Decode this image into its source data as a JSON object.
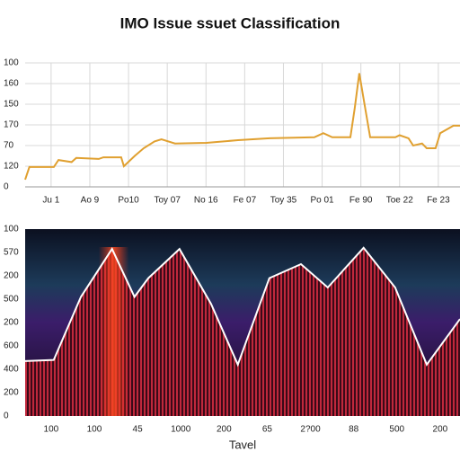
{
  "chart_data": [
    {
      "type": "line",
      "title": "IMO Issue ssuet Classification",
      "color": "#e0a030",
      "grid": true,
      "x": [
        -0.67,
        -0.56,
        0.07,
        0.19,
        0.53,
        0.65,
        1.23,
        1.35,
        1.81,
        1.88,
        2.16,
        2.39,
        2.67,
        2.85,
        3.2,
        4.01,
        4.83,
        5.64,
        6.8,
        7.03,
        7.26,
        7.73,
        7.84,
        7.96,
        8.07,
        8.24,
        8.89,
        9.0,
        9.23,
        9.35,
        9.58,
        9.7,
        9.93,
        10.05,
        10.39,
        10.56
      ],
      "values": [
        0.35,
        0.96,
        0.96,
        1.3,
        1.2,
        1.4,
        1.35,
        1.43,
        1.43,
        1.0,
        1.5,
        1.87,
        2.2,
        2.3,
        2.1,
        2.13,
        2.26,
        2.35,
        2.4,
        2.6,
        2.4,
        2.4,
        3.8,
        5.5,
        4.26,
        2.4,
        2.4,
        2.5,
        2.35,
        2.0,
        2.1,
        1.87,
        1.87,
        2.6,
        2.96,
        2.96
      ],
      "xlim": [
        -0.67,
        10.56
      ],
      "xticks": [
        {
          "value": 0,
          "label": "Ju 1"
        },
        {
          "value": 1,
          "label": "Ao 9"
        },
        {
          "value": 2,
          "label": "Po10"
        },
        {
          "value": 3,
          "label": "Toy 07"
        },
        {
          "value": 4,
          "label": "No 16"
        },
        {
          "value": 5,
          "label": "Fe 07"
        },
        {
          "value": 6,
          "label": "Toy 35"
        },
        {
          "value": 7,
          "label": "Po 01"
        },
        {
          "value": 8,
          "label": "Fe 90"
        },
        {
          "value": 9,
          "label": "Toe 22"
        },
        {
          "value": 10,
          "label": "Fe 23"
        }
      ],
      "ylim": [
        0,
        6
      ],
      "yticks": [
        0,
        {
          "value": 1,
          "label": "120"
        },
        {
          "value": 2,
          "label": "70"
        },
        {
          "value": 3,
          "label": "170"
        },
        {
          "value": 4,
          "label": "150"
        },
        {
          "value": 5,
          "label": "160"
        },
        {
          "value": 6,
          "label": "100"
        }
      ]
    },
    {
      "type": "area",
      "xlabel": "Tavel",
      "color": "#c0283c",
      "grid": false,
      "x": [
        -0.6,
        0.06,
        0.69,
        1.41,
        1.93,
        2.25,
        2.97,
        3.7,
        4.32,
        5.05,
        5.78,
        6.4,
        7.23,
        7.96,
        8.69,
        9.46
      ],
      "values": [
        2.35,
        2.4,
        5.1,
        7.15,
        5.1,
        5.9,
        7.15,
        4.8,
        2.2,
        5.9,
        6.5,
        5.5,
        7.2,
        5.5,
        2.2,
        4.15
      ],
      "xlim": [
        -0.6,
        9.46
      ],
      "xticks": [
        {
          "value": 0,
          "label": "100"
        },
        {
          "value": 1,
          "label": "100"
        },
        {
          "value": 2,
          "label": "45"
        },
        {
          "value": 3,
          "label": "1000"
        },
        {
          "value": 4,
          "label": "200"
        },
        {
          "value": 5,
          "label": "65"
        },
        {
          "value": 6,
          "label": "2?00"
        },
        {
          "value": 7,
          "label": "88"
        },
        {
          "value": 8,
          "label": "500"
        },
        {
          "value": 9,
          "label": "200"
        }
      ],
      "ylim": [
        0,
        8
      ],
      "yticks": [
        0,
        {
          "value": 1,
          "label": "200"
        },
        {
          "value": 2,
          "label": "400"
        },
        {
          "value": 3,
          "label": "600"
        },
        {
          "value": 4,
          "label": "200"
        },
        {
          "value": 5,
          "label": "500"
        },
        {
          "value": 6,
          "label": "200"
        },
        {
          "value": 7,
          "label": "570"
        },
        {
          "value": 8,
          "label": "100"
        }
      ]
    }
  ]
}
